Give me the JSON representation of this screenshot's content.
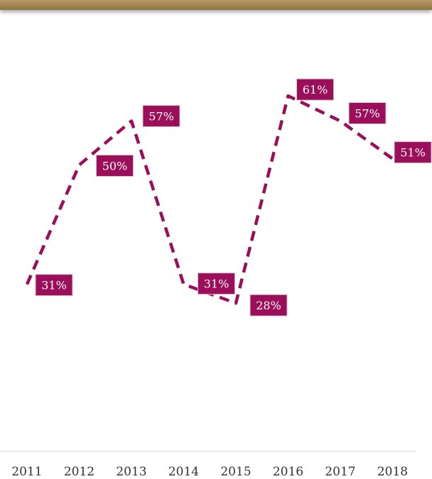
{
  "chart_data": {
    "type": "line",
    "title": "",
    "xlabel": "",
    "ylabel": "",
    "categories": [
      "2011",
      "2012",
      "2013",
      "2014",
      "2015",
      "2016",
      "2017",
      "2018"
    ],
    "series": [
      {
        "values": [
          31,
          50,
          57,
          31,
          28,
          61,
          57,
          51
        ],
        "labels": [
          "31%",
          "50%",
          "57%",
          "31%",
          "28%",
          "61%",
          "57%",
          "51%"
        ]
      }
    ],
    "line_style": "dashed",
    "grid": false,
    "legend": "none",
    "colors": {
      "series": "#9b0f5a",
      "label_bg": "#9b0f5a",
      "label_text": "#ffffff",
      "axis": "#d9d9d9",
      "top_bar": "#a68a55"
    }
  }
}
